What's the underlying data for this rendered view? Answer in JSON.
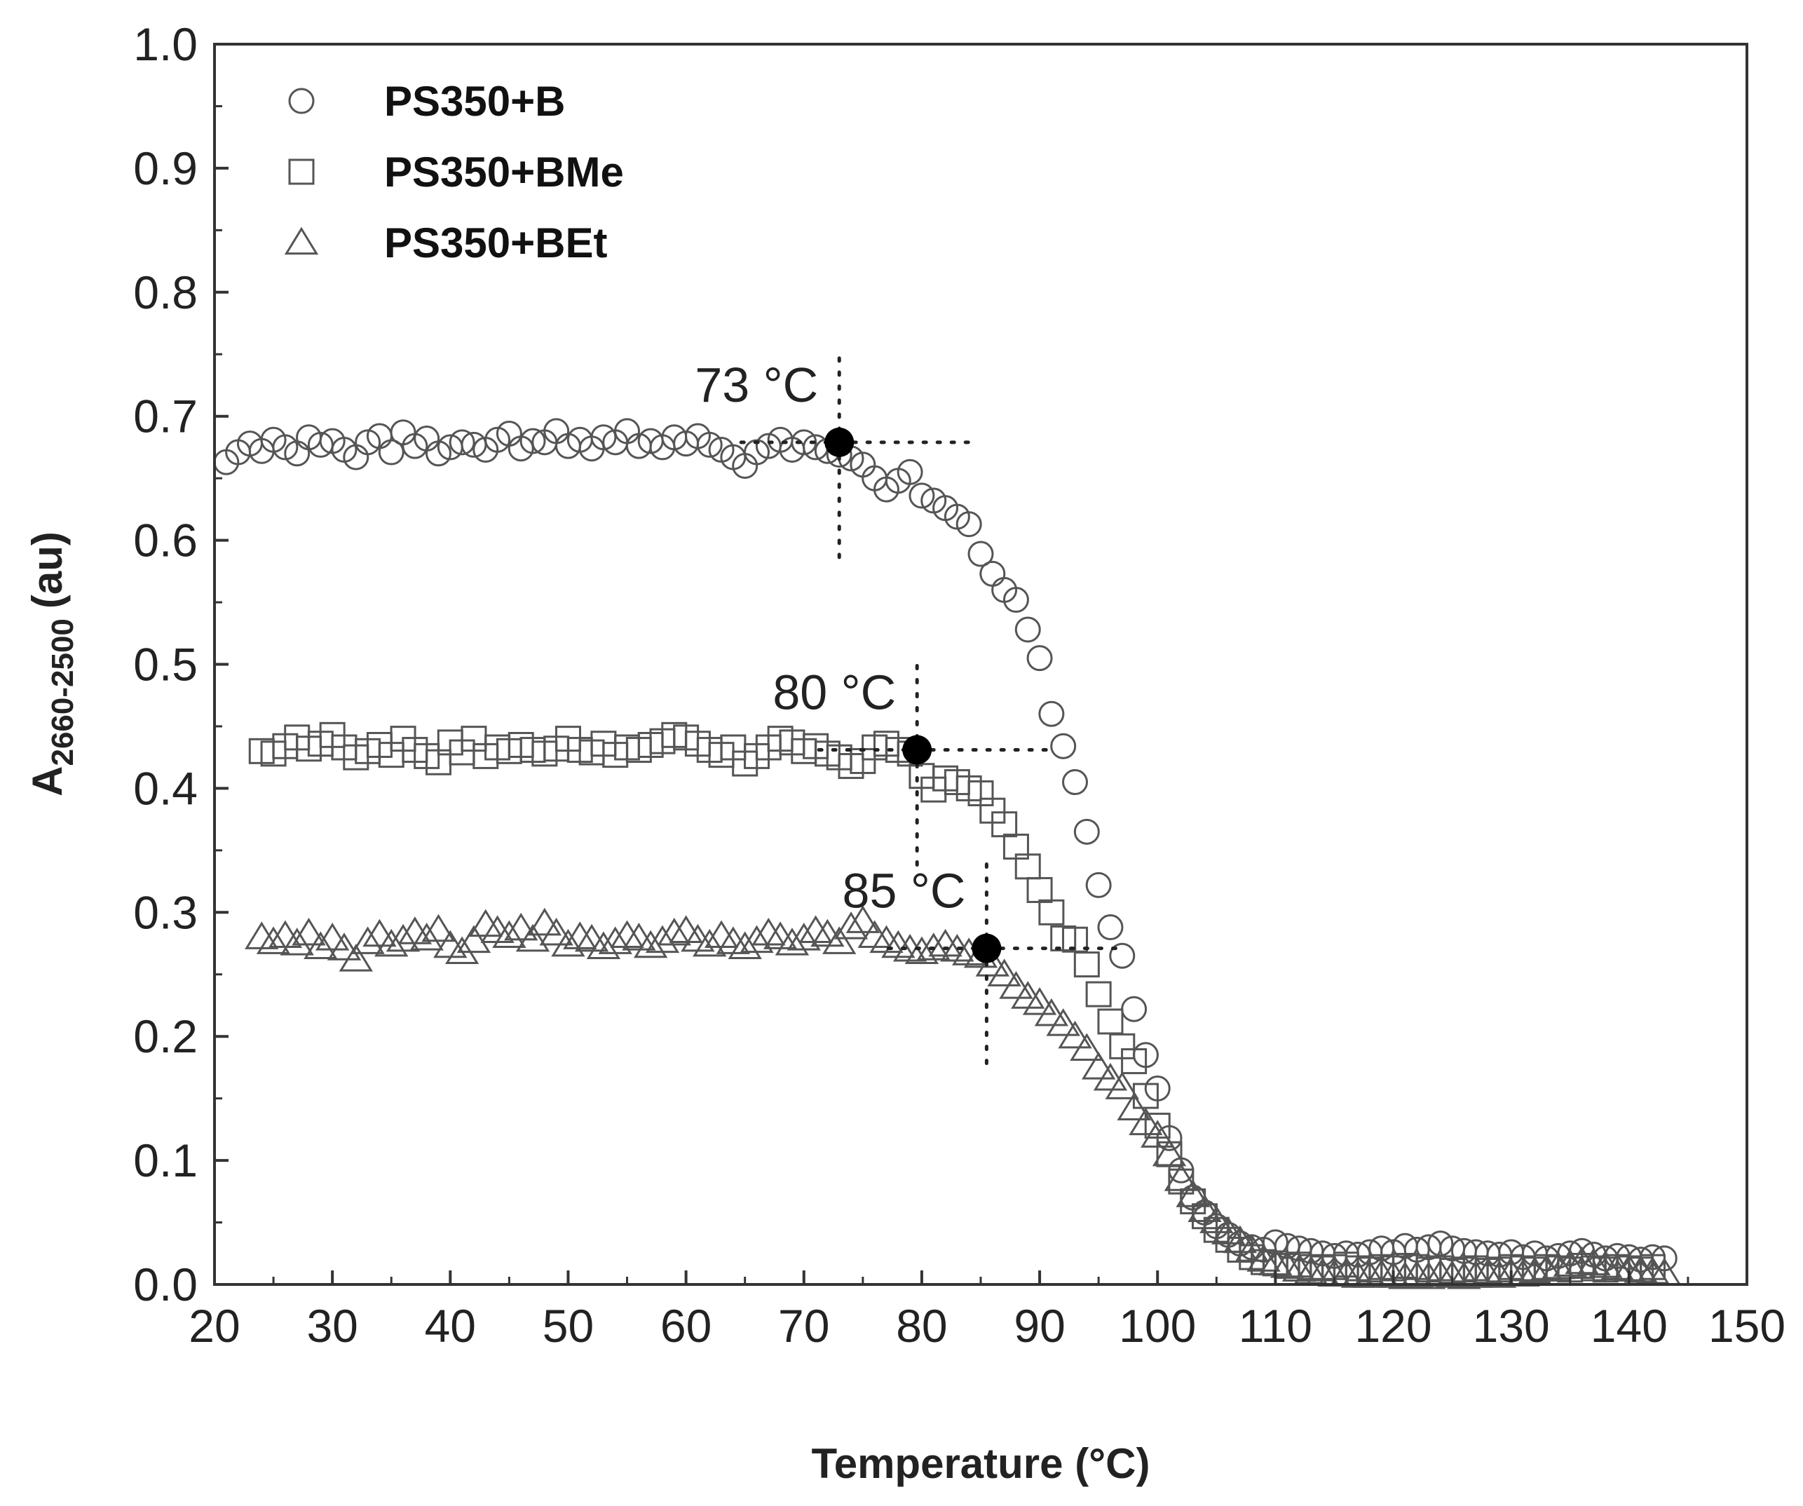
{
  "chart_data": {
    "type": "scatter",
    "title": "",
    "xlabel": "Temperature (°C)",
    "ylabel_main": "A",
    "ylabel_sub": "2660-2500",
    "ylabel_unit": "(au)",
    "xlim": [
      20,
      150
    ],
    "ylim": [
      0.0,
      1.0
    ],
    "x_ticks": [
      "20",
      "30",
      "40",
      "50",
      "60",
      "70",
      "80",
      "90",
      "100",
      "110",
      "120",
      "130",
      "140",
      "150"
    ],
    "y_ticks": [
      "0.0",
      "0.1",
      "0.2",
      "0.3",
      "0.4",
      "0.5",
      "0.6",
      "0.7",
      "0.8",
      "0.9",
      "1.0"
    ],
    "legend_position": "top-left",
    "series": [
      {
        "name": "PS350+B",
        "marker": "circle",
        "x": [
          21,
          22,
          23,
          24,
          25,
          26,
          27,
          28,
          29,
          30,
          31,
          32,
          33,
          34,
          35,
          36,
          37,
          38,
          39,
          40,
          41,
          42,
          43,
          44,
          45,
          46,
          47,
          48,
          49,
          50,
          51,
          52,
          53,
          54,
          55,
          56,
          57,
          58,
          59,
          60,
          61,
          62,
          63,
          64,
          65,
          66,
          67,
          68,
          69,
          70,
          71,
          72,
          73,
          74,
          75,
          76,
          77,
          78,
          79,
          80,
          81,
          82,
          83,
          84,
          85,
          86,
          87,
          88,
          89,
          90,
          91,
          92,
          93,
          94,
          95,
          96,
          97,
          98,
          99,
          100,
          101,
          102,
          103,
          104,
          105,
          106,
          107,
          108,
          109,
          110,
          111,
          112,
          113,
          114,
          115,
          116,
          117,
          118,
          119,
          120,
          121,
          122,
          123,
          124,
          125,
          126,
          127,
          128,
          129,
          130,
          131,
          132,
          133,
          134,
          135,
          136,
          137,
          138,
          139,
          140,
          141,
          142,
          143
        ],
        "y": [
          0.663,
          0.671,
          0.678,
          0.672,
          0.681,
          0.675,
          0.67,
          0.683,
          0.677,
          0.68,
          0.673,
          0.667,
          0.679,
          0.684,
          0.671,
          0.687,
          0.676,
          0.682,
          0.67,
          0.675,
          0.679,
          0.677,
          0.673,
          0.681,
          0.686,
          0.674,
          0.68,
          0.679,
          0.688,
          0.676,
          0.681,
          0.674,
          0.683,
          0.679,
          0.688,
          0.676,
          0.68,
          0.675,
          0.683,
          0.678,
          0.684,
          0.677,
          0.673,
          0.667,
          0.66,
          0.671,
          0.676,
          0.681,
          0.673,
          0.679,
          0.675,
          0.672,
          0.669,
          0.666,
          0.661,
          0.65,
          0.641,
          0.648,
          0.655,
          0.636,
          0.632,
          0.626,
          0.619,
          0.613,
          0.589,
          0.573,
          0.56,
          0.552,
          0.528,
          0.505,
          0.46,
          0.434,
          0.405,
          0.365,
          0.322,
          0.288,
          0.265,
          0.222,
          0.185,
          0.158,
          0.118,
          0.092,
          0.07,
          0.058,
          0.047,
          0.04,
          0.033,
          0.03,
          0.028,
          0.034,
          0.031,
          0.029,
          0.027,
          0.025,
          0.023,
          0.025,
          0.024,
          0.026,
          0.029,
          0.026,
          0.031,
          0.028,
          0.03,
          0.033,
          0.029,
          0.027,
          0.026,
          0.025,
          0.024,
          0.026,
          0.022,
          0.025,
          0.021,
          0.023,
          0.025,
          0.027,
          0.024,
          0.021,
          0.023,
          0.022,
          0.02,
          0.022,
          0.021
        ]
      },
      {
        "name": "PS350+BMe",
        "marker": "square",
        "x": [
          24,
          25,
          26,
          27,
          28,
          29,
          30,
          31,
          32,
          33,
          34,
          35,
          36,
          37,
          38,
          39,
          40,
          41,
          42,
          43,
          44,
          45,
          46,
          47,
          48,
          49,
          50,
          51,
          52,
          53,
          54,
          55,
          56,
          57,
          58,
          59,
          60,
          61,
          62,
          63,
          64,
          65,
          66,
          67,
          68,
          69,
          70,
          71,
          72,
          73,
          74,
          75,
          76,
          77,
          78,
          79,
          80,
          81,
          82,
          83,
          84,
          85,
          86,
          87,
          88,
          89,
          90,
          91,
          92,
          93,
          94,
          95,
          96,
          97,
          98,
          99,
          100,
          101,
          102,
          103,
          104,
          105,
          106,
          107,
          108,
          109,
          110,
          111,
          112,
          113,
          114,
          115,
          116,
          117,
          118,
          119,
          120,
          121,
          122,
          123,
          124,
          125,
          126,
          127,
          128,
          129,
          130,
          131,
          132,
          133,
          134,
          135,
          136,
          137,
          138,
          139,
          140,
          141,
          142
        ],
        "y": [
          0.43,
          0.428,
          0.434,
          0.441,
          0.432,
          0.436,
          0.443,
          0.433,
          0.425,
          0.43,
          0.435,
          0.427,
          0.44,
          0.431,
          0.426,
          0.421,
          0.437,
          0.429,
          0.44,
          0.426,
          0.433,
          0.43,
          0.435,
          0.431,
          0.428,
          0.432,
          0.44,
          0.431,
          0.429,
          0.436,
          0.427,
          0.433,
          0.431,
          0.435,
          0.438,
          0.443,
          0.441,
          0.436,
          0.431,
          0.427,
          0.433,
          0.42,
          0.426,
          0.433,
          0.44,
          0.437,
          0.43,
          0.434,
          0.428,
          0.425,
          0.418,
          0.422,
          0.433,
          0.436,
          0.431,
          0.428,
          0.41,
          0.399,
          0.408,
          0.405,
          0.4,
          0.396,
          0.382,
          0.371,
          0.353,
          0.337,
          0.318,
          0.3,
          0.279,
          0.278,
          0.258,
          0.234,
          0.212,
          0.192,
          0.18,
          0.152,
          0.128,
          0.105,
          0.083,
          0.067,
          0.055,
          0.044,
          0.036,
          0.028,
          0.022,
          0.018,
          0.017,
          0.015,
          0.016,
          0.014,
          0.013,
          0.014,
          0.016,
          0.013,
          0.012,
          0.014,
          0.013,
          0.015,
          0.014,
          0.012,
          0.013,
          0.011,
          0.012,
          0.013,
          0.011,
          0.012,
          0.014,
          0.013,
          0.012,
          0.014,
          0.013,
          0.012,
          0.015,
          0.013,
          0.012,
          0.014,
          0.013,
          0.012,
          0.014
        ]
      },
      {
        "name": "PS350+BEt",
        "marker": "triangle",
        "x": [
          24,
          25,
          26,
          27,
          28,
          29,
          30,
          31,
          32,
          33,
          34,
          35,
          36,
          37,
          38,
          39,
          40,
          41,
          42,
          43,
          44,
          45,
          46,
          47,
          48,
          49,
          50,
          51,
          52,
          53,
          54,
          55,
          56,
          57,
          58,
          59,
          60,
          61,
          62,
          63,
          64,
          65,
          66,
          67,
          68,
          69,
          70,
          71,
          72,
          73,
          74,
          75,
          76,
          77,
          78,
          79,
          80,
          81,
          82,
          83,
          84,
          85,
          86,
          87,
          88,
          89,
          90,
          91,
          92,
          93,
          94,
          95,
          96,
          97,
          98,
          99,
          100,
          101,
          102,
          103,
          104,
          105,
          106,
          107,
          108,
          109,
          110,
          111,
          112,
          113,
          114,
          115,
          116,
          117,
          118,
          119,
          120,
          121,
          122,
          123,
          124,
          125,
          126,
          127,
          128,
          129,
          130,
          131,
          132,
          133,
          134,
          135,
          136,
          137,
          138,
          139,
          140,
          141,
          142,
          143
        ],
        "y": [
          0.28,
          0.276,
          0.281,
          0.275,
          0.283,
          0.272,
          0.279,
          0.271,
          0.262,
          0.276,
          0.282,
          0.274,
          0.278,
          0.284,
          0.279,
          0.286,
          0.273,
          0.268,
          0.277,
          0.29,
          0.285,
          0.281,
          0.287,
          0.278,
          0.291,
          0.283,
          0.274,
          0.28,
          0.278,
          0.272,
          0.276,
          0.281,
          0.279,
          0.273,
          0.277,
          0.283,
          0.285,
          0.278,
          0.274,
          0.281,
          0.276,
          0.272,
          0.277,
          0.283,
          0.28,
          0.275,
          0.279,
          0.285,
          0.282,
          0.276,
          0.288,
          0.293,
          0.281,
          0.277,
          0.273,
          0.27,
          0.268,
          0.271,
          0.274,
          0.27,
          0.267,
          0.265,
          0.258,
          0.25,
          0.24,
          0.232,
          0.227,
          0.218,
          0.21,
          0.2,
          0.19,
          0.175,
          0.166,
          0.159,
          0.142,
          0.13,
          0.12,
          0.105,
          0.085,
          0.072,
          0.06,
          0.051,
          0.042,
          0.035,
          0.028,
          0.02,
          0.017,
          0.015,
          0.012,
          0.01,
          0.009,
          0.008,
          0.008,
          0.007,
          0.007,
          0.008,
          0.007,
          0.006,
          0.007,
          0.006,
          0.008,
          0.007,
          0.006,
          0.007,
          0.008,
          0.007,
          0.009,
          0.008,
          0.01,
          0.012,
          0.014,
          0.016,
          0.018,
          0.017,
          0.015,
          0.013,
          0.012,
          0.011,
          0.01,
          0.009
        ]
      }
    ],
    "annotations": [
      {
        "label": "73 °C",
        "x": 73,
        "y": 0.679
      },
      {
        "label": "80 °C",
        "x": 79.6,
        "y": 0.431
      },
      {
        "label": "85 °C",
        "x": 85.5,
        "y": 0.271
      }
    ]
  }
}
